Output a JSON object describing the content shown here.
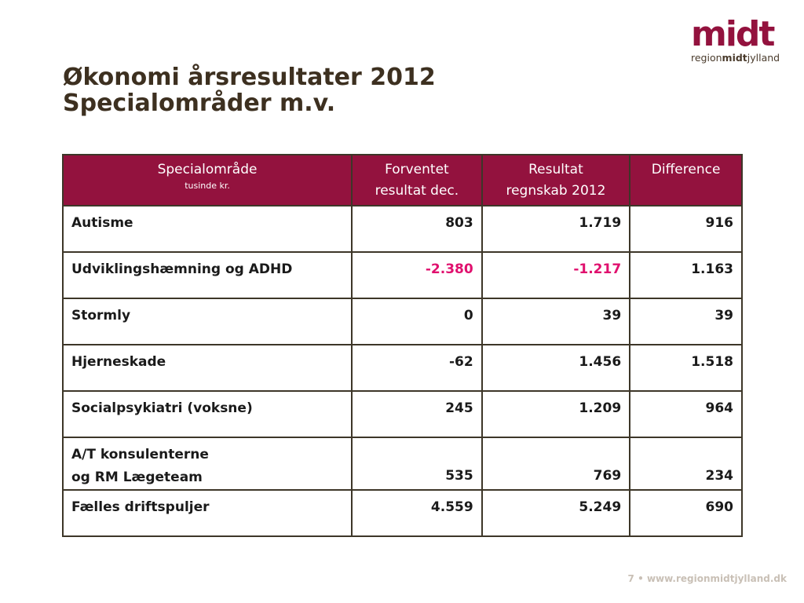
{
  "logo": {
    "word": "midt",
    "sub_prefix": "region",
    "sub_bold": "midt",
    "sub_suffix": "jylland"
  },
  "title": {
    "line1": "Økonomi årsresultater 2012",
    "line2": "Specialområder m.v."
  },
  "table": {
    "headers": {
      "col1": "Specialområde",
      "col1_sub": "tusinde kr.",
      "col2_line1": "Forventet",
      "col2_line2": "resultat dec.",
      "col3_line1": "Resultat",
      "col3_line2": "regnskab 2012",
      "col4": "Difference"
    },
    "rows": [
      {
        "area": "Autisme",
        "expected": "803",
        "result": "1.719",
        "diff": "916"
      },
      {
        "area": "Udviklingshæmning og ADHD",
        "expected": "-2.380",
        "result": "-1.217",
        "diff": "1.163"
      },
      {
        "area": "Stormly",
        "expected": "0",
        "result": "39",
        "diff": "39"
      },
      {
        "area": "Hjerneskade",
        "expected": "-62",
        "result": "1.456",
        "diff": "1.518"
      },
      {
        "area": "Socialpsykiatri (voksne)",
        "expected": "245",
        "result": "1.209",
        "diff": "964"
      },
      {
        "area_line1": "A/T konsulenterne",
        "area_line2": "og RM Lægeteam",
        "expected": "535",
        "result": "769",
        "diff": "234"
      },
      {
        "area": "Fælles driftspuljer",
        "expected": "4.559",
        "result": "5.249",
        "diff": "690"
      }
    ]
  },
  "footer": {
    "page": "7",
    "separator": "•",
    "url": "www.regionmidtjylland.dk"
  },
  "colors": {
    "brand": "#93123e",
    "negative": "#e0106e",
    "title": "#3d3020"
  }
}
